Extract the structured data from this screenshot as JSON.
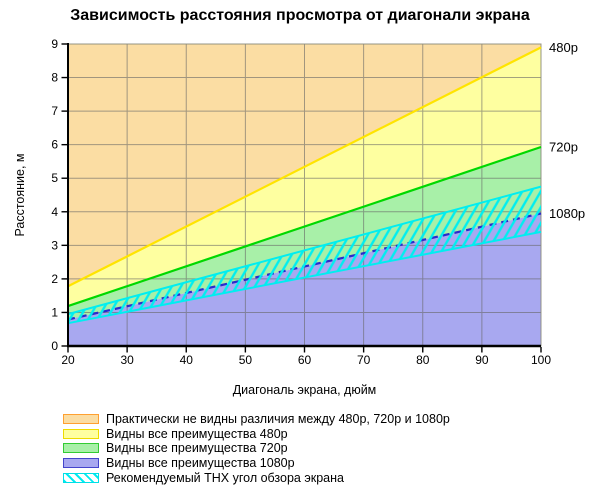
{
  "title": "Зависимость расстояния просмотра от диагонали экрана",
  "chart_data": {
    "type": "area",
    "title": "Зависимость расстояния просмотра от диагонали экрана",
    "xlabel": "Диагональ экрана, дюйм",
    "ylabel": "Расстояние, м",
    "xlim": [
      20,
      100
    ],
    "ylim": [
      0,
      9
    ],
    "xticks": [
      20,
      30,
      40,
      50,
      60,
      70,
      80,
      90,
      100
    ],
    "yticks": [
      0,
      1,
      2,
      3,
      4,
      5,
      6,
      7,
      8,
      9
    ],
    "grid": true,
    "x": [
      20,
      100
    ],
    "series": [
      {
        "name": "480p",
        "label": "480p",
        "values": [
          1.78,
          8.9
        ],
        "role": "boundary",
        "line_color": "#ffe400",
        "line_style": "solid"
      },
      {
        "name": "720p",
        "label": "720p",
        "values": [
          1.19,
          5.93
        ],
        "role": "boundary",
        "line_color": "#00d800",
        "line_style": "solid"
      },
      {
        "name": "1080p",
        "label": "1080p",
        "values": [
          0.79,
          3.95
        ],
        "role": "boundary",
        "line_color": "#2a2acc",
        "line_style": "dashed"
      },
      {
        "name": "thx_max_angle",
        "label": "",
        "values": [
          0.95,
          4.75
        ],
        "role": "band_edge",
        "line_color": "#00eef0",
        "line_style": "solid"
      },
      {
        "name": "thx_min_angle",
        "label": "",
        "values": [
          0.68,
          3.4
        ],
        "role": "band_edge",
        "line_color": "#00eef0",
        "line_style": "solid"
      }
    ],
    "regions": [
      {
        "name": "no_visible_difference",
        "lower": "480p",
        "upper": "ymax",
        "fill": "#fbdda3"
      },
      {
        "name": "benefits_480p",
        "lower": "720p",
        "upper": "480p",
        "fill": "#feffa0"
      },
      {
        "name": "benefits_720p",
        "lower": "1080p",
        "upper": "720p",
        "fill": "#a8f0a8"
      },
      {
        "name": "benefits_1080p",
        "lower": "ymin",
        "upper": "1080p",
        "fill": "#a8a8f0"
      },
      {
        "name": "thx_recommended_band",
        "lower": "thx_min_angle",
        "upper": "thx_max_angle",
        "fill": "hatch",
        "hatch_color": "#00eef0"
      }
    ],
    "legend_position": "bottom-left",
    "grid_color": "#666666",
    "axis_color": "#000000"
  },
  "legend": {
    "items": [
      {
        "swatch": "orange",
        "fill": "#fbdda3",
        "border": "#ffa030",
        "label": "Практически не видны различия между 480р, 720р и 1080р"
      },
      {
        "swatch": "yellow",
        "fill": "#feffa0",
        "border": "#eedc00",
        "label": "Видны все преимущества 480р"
      },
      {
        "swatch": "green",
        "fill": "#a8f0a8",
        "border": "#33cc33",
        "label": "Видны все преимущества 720р"
      },
      {
        "swatch": "blue",
        "fill": "#a8a8f0",
        "border": "#4444cc",
        "label": "Видны все преимущества 1080р"
      },
      {
        "swatch": "hatch",
        "fill": "#ffffff",
        "border": "#00e0e6",
        "label": "Рекомендуемый THX угол обзора экрана"
      }
    ]
  }
}
